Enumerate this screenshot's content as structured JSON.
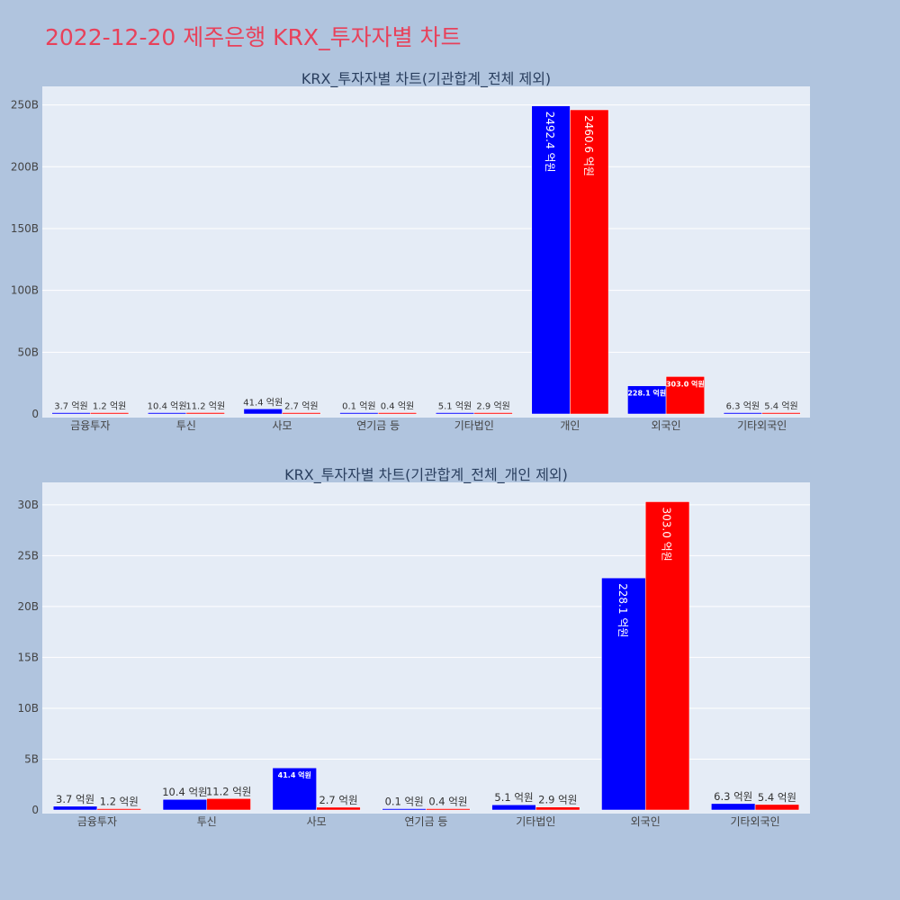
{
  "page": {
    "title": "2022-12-20 제주은행 KRX_투자자별 차트"
  },
  "colors": {
    "buy": "#0000ff",
    "sell": "#ff0000",
    "plot_bg": "#e5ecf6",
    "page_bg": "#b0c4de",
    "title": "#e8415a"
  },
  "chart_data": [
    {
      "type": "bar",
      "title": "KRX_투자자별 차트(기관합계_전체 제외)",
      "categories": [
        "금융투자",
        "투신",
        "사모",
        "연기금 등",
        "기타법인",
        "개인",
        "외국인",
        "기타외국인"
      ],
      "series": [
        {
          "color": "#0000ff",
          "values": [
            370000000,
            1040000000,
            4140000000,
            10000000,
            510000000,
            249240000000,
            22810000000,
            630000000
          ],
          "labels": [
            "3.7 억원",
            "10.4 억원",
            "41.4 억원",
            "0.1 억원",
            "5.1 억원",
            "2492.4 억원",
            "228.1 억원",
            "6.3 억원"
          ]
        },
        {
          "color": "#ff0000",
          "values": [
            120000000,
            1120000000,
            270000000,
            40000000,
            290000000,
            246060000000,
            30300000000,
            540000000
          ],
          "labels": [
            "1.2 억원",
            "11.2 억원",
            "2.7 억원",
            "0.4 억원",
            "2.9 억원",
            "2460.6 억원",
            "303.0 억원",
            "5.4 억원"
          ]
        }
      ],
      "ylim": [
        0,
        265000000000
      ],
      "yticks": [
        0,
        50000000000,
        100000000000,
        150000000000,
        200000000000,
        250000000000
      ],
      "ytick_labels": [
        "0",
        "50B",
        "100B",
        "150B",
        "200B",
        "250B"
      ],
      "grid": true,
      "legend": "none"
    },
    {
      "type": "bar",
      "title": "KRX_투자자별 차트(기관합계_전체_개인 제외)",
      "categories": [
        "금융투자",
        "투신",
        "사모",
        "연기금 등",
        "기타법인",
        "외국인",
        "기타외국인"
      ],
      "series": [
        {
          "color": "#0000ff",
          "values": [
            370000000,
            1040000000,
            4140000000,
            10000000,
            510000000,
            22810000000,
            630000000
          ],
          "labels": [
            "3.7 억원",
            "10.4 억원",
            "41.4 억원",
            "0.1 억원",
            "5.1 억원",
            "228.1 억원",
            "6.3 억원"
          ]
        },
        {
          "color": "#ff0000",
          "values": [
            120000000,
            1120000000,
            270000000,
            40000000,
            290000000,
            30300000000,
            540000000
          ],
          "labels": [
            "1.2 억원",
            "11.2 억원",
            "2.7 억원",
            "0.4 억원",
            "2.9 억원",
            "303.0 억원",
            "5.4 억원"
          ]
        }
      ],
      "ylim": [
        0,
        32200000000
      ],
      "yticks": [
        0,
        5000000000,
        10000000000,
        15000000000,
        20000000000,
        25000000000,
        30000000000
      ],
      "ytick_labels": [
        "0",
        "5B",
        "10B",
        "15B",
        "20B",
        "25B",
        "30B"
      ],
      "grid": true,
      "legend": "none"
    }
  ]
}
